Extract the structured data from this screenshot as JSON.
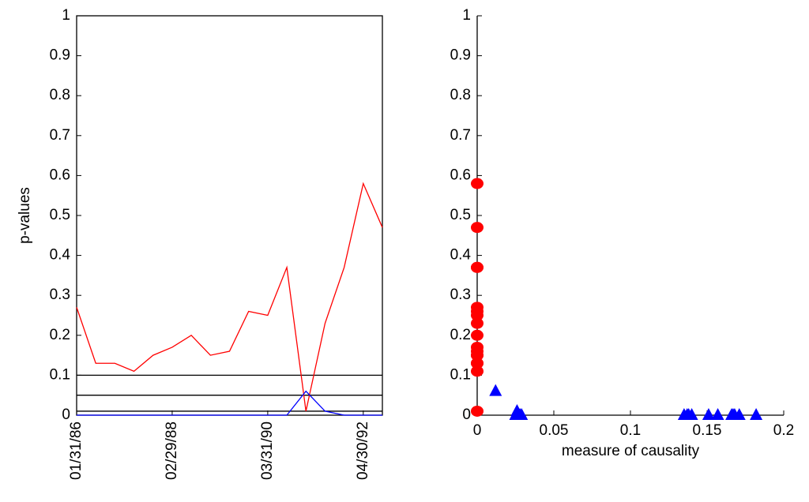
{
  "chart_data": [
    {
      "type": "line",
      "ylabel": "p-values",
      "categories": [
        "01/31/86",
        null,
        null,
        null,
        null,
        "02/29/88",
        null,
        null,
        null,
        null,
        "03/31/90",
        null,
        null,
        null,
        null,
        "04/30/92",
        null
      ],
      "series": [
        {
          "color": "#ff0000",
          "values": [
            0.27,
            0.13,
            0.13,
            0.11,
            0.15,
            0.17,
            0.2,
            0.15,
            0.16,
            0.26,
            0.25,
            0.37,
            0.01,
            0.23,
            0.37,
            0.58,
            0.47
          ]
        },
        {
          "color": "#0000ff",
          "values": [
            0,
            0,
            0,
            0,
            0,
            0,
            0,
            0,
            0,
            0,
            0,
            0,
            0.06,
            0.01,
            0,
            0,
            0
          ]
        }
      ],
      "hlines": [
        0.1,
        0.05,
        0.01
      ],
      "hline_color": "#000000",
      "ylim": [
        0,
        1
      ],
      "yticks": [
        0,
        0.1,
        0.2,
        0.3,
        0.4,
        0.5,
        0.6,
        0.7,
        0.8,
        0.9,
        1
      ],
      "box": true
    },
    {
      "type": "scatter",
      "xlabel": "measure of causality",
      "series": [
        {
          "color": "#ff0000",
          "marker": "circle",
          "x": [
            0,
            0,
            0,
            0,
            0,
            0,
            0,
            0,
            0,
            0,
            0,
            0,
            0,
            0,
            0,
            0,
            0
          ],
          "values": [
            0.27,
            0.13,
            0.13,
            0.11,
            0.15,
            0.17,
            0.2,
            0.15,
            0.16,
            0.26,
            0.25,
            0.37,
            0.01,
            0.23,
            0.37,
            0.58,
            0.47
          ]
        },
        {
          "color": "#0000ff",
          "marker": "triangle",
          "x": [
            0.137,
            0.14,
            0.151,
            0.157,
            0.166,
            0.168,
            0.171,
            0.182,
            0.138,
            0.025,
            0.027,
            0.028,
            0.012,
            0.026,
            0.029,
            0.135,
            0.167
          ],
          "values": [
            0,
            0,
            0,
            0,
            0,
            0,
            0,
            0,
            0,
            0,
            0,
            0,
            0.06,
            0.01,
            0,
            0,
            0
          ]
        }
      ],
      "xlim": [
        0,
        0.2
      ],
      "xticks": [
        0,
        0.05,
        0.1,
        0.15,
        0.2
      ],
      "ylim": [
        0,
        1
      ],
      "yticks": [
        0,
        0.1,
        0.2,
        0.3,
        0.4,
        0.5,
        0.6,
        0.7,
        0.8,
        0.9,
        1
      ],
      "box": false
    }
  ]
}
